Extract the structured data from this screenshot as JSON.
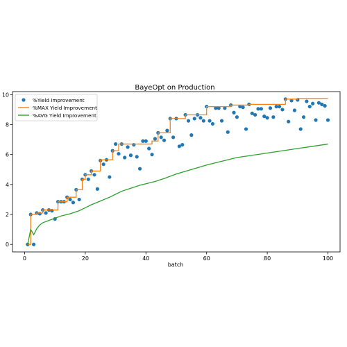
{
  "chart_data": {
    "type": "scatter",
    "title": "BayeOpt on Production",
    "xlabel": "batch",
    "ylabel": "",
    "xlim": [
      -4,
      104
    ],
    "ylim": [
      -0.5,
      10.2
    ],
    "x_ticks": [
      0,
      20,
      40,
      60,
      80,
      100
    ],
    "y_ticks": [
      0,
      2,
      4,
      6,
      8,
      10
    ],
    "grid": false,
    "legend_position": "upper-left",
    "series": [
      {
        "name": "%Yield Improvement",
        "kind": "scatter",
        "color": "#1f77b4",
        "x": [
          1,
          2,
          3,
          4,
          5,
          6,
          7,
          8,
          9,
          10,
          11,
          12,
          13,
          14,
          15,
          16,
          17,
          18,
          19,
          20,
          21,
          22,
          23,
          24,
          25,
          26,
          27,
          28,
          29,
          30,
          31,
          32,
          33,
          34,
          35,
          36,
          37,
          38,
          39,
          40,
          41,
          42,
          43,
          44,
          45,
          46,
          47,
          48,
          49,
          50,
          51,
          52,
          53,
          54,
          55,
          56,
          57,
          58,
          59,
          60,
          61,
          62,
          63,
          64,
          65,
          66,
          67,
          68,
          69,
          70,
          71,
          72,
          73,
          74,
          75,
          76,
          77,
          78,
          79,
          80,
          81,
          82,
          83,
          84,
          85,
          86,
          87,
          88,
          89,
          90,
          91,
          92,
          93,
          94,
          95,
          96,
          97,
          98,
          99,
          100
        ],
        "y": [
          0.0,
          2.0,
          0.0,
          2.1,
          2.05,
          2.3,
          2.1,
          2.3,
          2.25,
          1.7,
          2.85,
          2.85,
          2.85,
          3.15,
          3.0,
          2.8,
          3.65,
          3.0,
          4.35,
          4.65,
          4.35,
          4.9,
          4.65,
          3.7,
          5.6,
          5.35,
          5.65,
          4.5,
          6.25,
          6.7,
          6.05,
          6.7,
          5.8,
          6.5,
          5.95,
          6.65,
          5.85,
          5.05,
          6.9,
          6.9,
          6.4,
          6.0,
          7.05,
          7.45,
          7.15,
          6.95,
          7.6,
          8.4,
          7.15,
          8.4,
          6.55,
          6.65,
          8.65,
          8.25,
          7.3,
          8.4,
          8.65,
          8.45,
          8.25,
          9.2,
          8.25,
          8.05,
          9.1,
          9.1,
          8.25,
          9.1,
          7.5,
          9.3,
          8.8,
          8.5,
          9.2,
          9.15,
          7.7,
          9.35,
          8.75,
          8.65,
          9.05,
          9.05,
          8.55,
          8.45,
          9.1,
          8.5,
          9.2,
          9.2,
          9.0,
          9.7,
          8.2,
          9.6,
          8.95,
          9.65,
          7.7,
          8.5,
          9.55,
          9.2,
          9.4,
          8.3,
          9.45,
          9.35,
          9.25,
          8.3
        ]
      },
      {
        "name": "%MAX Yield Improvement",
        "kind": "step",
        "color": "#ff7f0e",
        "x": [
          1,
          2,
          4,
          6,
          11,
          14,
          17,
          19,
          20,
          22,
          25,
          29,
          31,
          42,
          44,
          48,
          53,
          60,
          68,
          74,
          86,
          90,
          100
        ],
        "y": [
          0.0,
          2.0,
          2.1,
          2.3,
          2.85,
          3.15,
          3.65,
          4.35,
          4.65,
          4.9,
          5.65,
          6.25,
          6.7,
          6.9,
          7.45,
          8.4,
          8.65,
          9.2,
          9.3,
          9.35,
          9.7,
          9.75,
          9.75
        ]
      },
      {
        "name": "%AVG Yield Improvement",
        "kind": "line",
        "color": "#2ca02c",
        "x": [
          1,
          2,
          3,
          4,
          5,
          6,
          8,
          10,
          12,
          15,
          18,
          20,
          22,
          25,
          28,
          30,
          32,
          35,
          38,
          40,
          43,
          46,
          50,
          55,
          60,
          65,
          70,
          75,
          80,
          85,
          90,
          95,
          100
        ],
        "y": [
          0.0,
          1.0,
          0.65,
          1.05,
          1.3,
          1.45,
          1.6,
          1.75,
          1.9,
          2.05,
          2.25,
          2.45,
          2.65,
          2.9,
          3.15,
          3.35,
          3.55,
          3.75,
          3.95,
          4.05,
          4.2,
          4.4,
          4.7,
          5.0,
          5.3,
          5.55,
          5.8,
          5.95,
          6.1,
          6.25,
          6.4,
          6.55,
          6.7
        ]
      }
    ]
  }
}
